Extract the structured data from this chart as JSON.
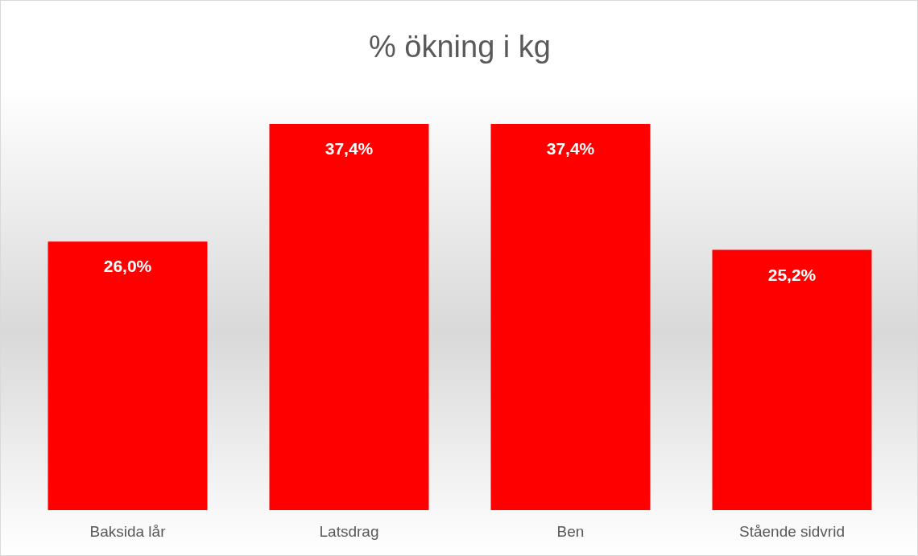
{
  "chart_data": {
    "type": "bar",
    "title": "% ökning i kg",
    "categories": [
      "Baksida lår",
      "Latsdrag",
      "Ben",
      "Stående sidvrid"
    ],
    "values": [
      26.0,
      37.4,
      37.4,
      25.2
    ],
    "value_labels": [
      "26,0%",
      "37,4%",
      "37,4%",
      "25,2%"
    ],
    "color": "#ff0000"
  }
}
